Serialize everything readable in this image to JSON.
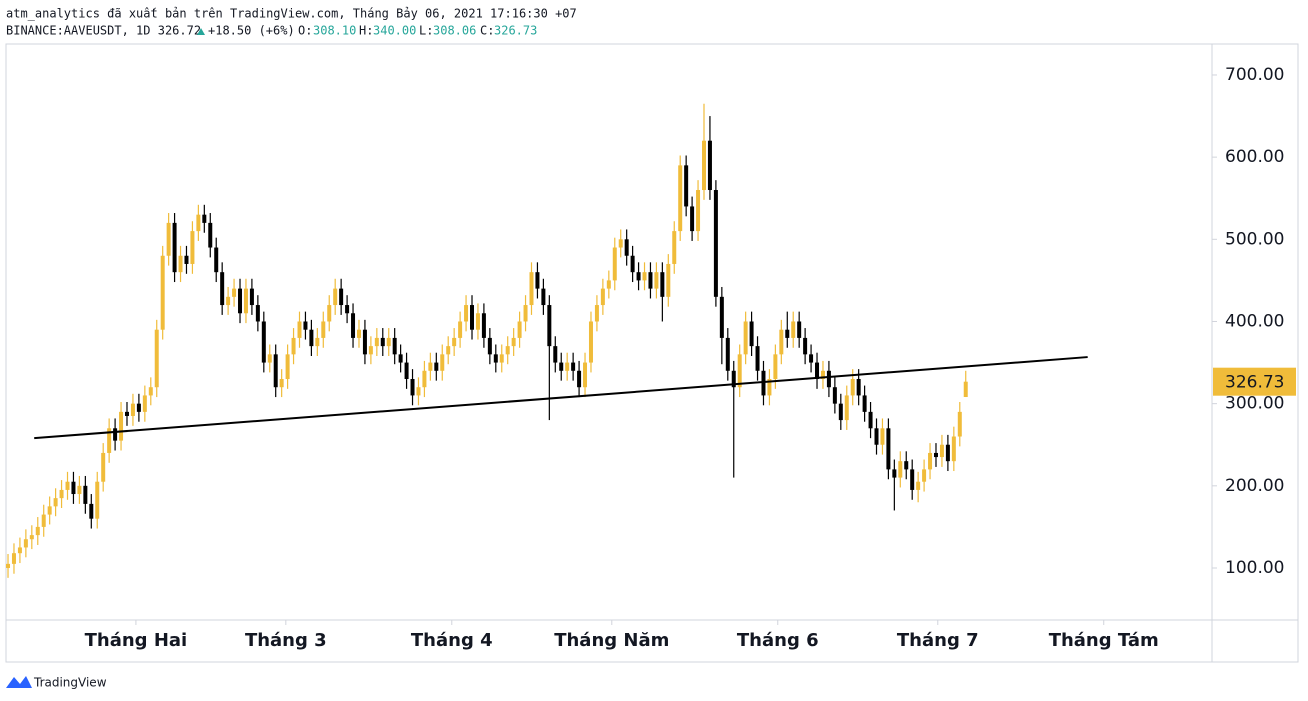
{
  "chart_data": {
    "type": "candlestick",
    "header": {
      "line1": "atm_analytics đã xuất bản trên TradingView.com, Tháng Bảy 06, 2021 17:16:30 +07",
      "symbol": "BINANCE:AAVEUSDT, 1D 326.72",
      "change": "+18.50 (+6%)",
      "o_label": "O:",
      "o_value": "308.10",
      "h_label": "H:",
      "h_value": "340.00",
      "l_label": "L:",
      "l_value": "308.06",
      "c_label": "C:",
      "c_value": "326.73"
    },
    "footer": "TradingView",
    "up_color": "#f0bc3a",
    "down_color": "#000000",
    "open": [
      100,
      105,
      118,
      125,
      135,
      140,
      150,
      165,
      175,
      185,
      195,
      205,
      190,
      200,
      178,
      160,
      205,
      240,
      270,
      255,
      290,
      285,
      300,
      290,
      310,
      320,
      390,
      480,
      520,
      460,
      480,
      470,
      510,
      530,
      520,
      490,
      460,
      420,
      430,
      440,
      410,
      440,
      420,
      400,
      350,
      360,
      320,
      330,
      360,
      380,
      400,
      390,
      370,
      380,
      400,
      420,
      440,
      420,
      410,
      380,
      390,
      360,
      370,
      380,
      370,
      380,
      360,
      350,
      330,
      310,
      320,
      340,
      350,
      340,
      360,
      370,
      380,
      400,
      420,
      390,
      410,
      380,
      360,
      350,
      360,
      370,
      380,
      400,
      420,
      460,
      440,
      420,
      370,
      350,
      340,
      350,
      340,
      320,
      350,
      400,
      420,
      440,
      450,
      490,
      500,
      480,
      460,
      450,
      460,
      440,
      460,
      430,
      470,
      510,
      590,
      540,
      510,
      560,
      620,
      560,
      430,
      380,
      340,
      320,
      360,
      400,
      370,
      340,
      310,
      330,
      360,
      390,
      380,
      400,
      380,
      360,
      350,
      330,
      340,
      320,
      300,
      280,
      310,
      330,
      310,
      290,
      270,
      250,
      270,
      220,
      210,
      230,
      220,
      195,
      205,
      220,
      240,
      235,
      250,
      230,
      260,
      308.1
    ],
    "high": [
      117,
      130,
      137,
      147,
      152,
      162,
      177,
      187,
      197,
      207,
      217,
      217,
      212,
      212,
      190,
      217,
      252,
      282,
      282,
      302,
      302,
      312,
      312,
      322,
      332,
      402,
      492,
      532,
      532,
      492,
      492,
      522,
      542,
      542,
      532,
      502,
      472,
      442,
      452,
      452,
      452,
      452,
      432,
      412,
      372,
      372,
      342,
      372,
      392,
      412,
      412,
      402,
      392,
      412,
      432,
      452,
      452,
      432,
      422,
      402,
      402,
      382,
      392,
      392,
      392,
      392,
      372,
      362,
      342,
      332,
      352,
      362,
      362,
      372,
      382,
      392,
      412,
      432,
      432,
      422,
      422,
      392,
      372,
      372,
      382,
      392,
      412,
      432,
      472,
      472,
      452,
      432,
      382,
      362,
      362,
      362,
      352,
      362,
      412,
      432,
      452,
      462,
      502,
      512,
      512,
      492,
      472,
      472,
      472,
      472,
      472,
      482,
      522,
      602,
      602,
      552,
      572,
      665,
      650,
      572,
      442,
      392,
      352,
      372,
      412,
      412,
      382,
      352,
      342,
      372,
      402,
      412,
      412,
      412,
      392,
      372,
      362,
      352,
      352,
      332,
      312,
      322,
      342,
      342,
      322,
      302,
      282,
      282,
      282,
      232,
      242,
      242,
      232,
      217,
      232,
      252,
      252,
      262,
      262,
      272,
      302,
      340
    ],
    "low": [
      88,
      93,
      106,
      113,
      123,
      128,
      138,
      153,
      163,
      173,
      183,
      178,
      178,
      166,
      148,
      148,
      193,
      228,
      243,
      243,
      273,
      273,
      278,
      278,
      298,
      308,
      378,
      468,
      448,
      448,
      458,
      458,
      498,
      508,
      478,
      448,
      408,
      408,
      418,
      398,
      398,
      408,
      388,
      338,
      338,
      308,
      308,
      318,
      348,
      368,
      378,
      358,
      358,
      368,
      388,
      408,
      408,
      398,
      368,
      368,
      348,
      348,
      358,
      358,
      358,
      348,
      338,
      318,
      298,
      298,
      308,
      328,
      328,
      328,
      348,
      358,
      368,
      388,
      378,
      378,
      368,
      348,
      338,
      338,
      348,
      358,
      368,
      388,
      408,
      428,
      408,
      280,
      338,
      328,
      328,
      328,
      308,
      308,
      338,
      388,
      408,
      428,
      438,
      478,
      468,
      448,
      438,
      438,
      428,
      428,
      400,
      418,
      458,
      498,
      528,
      498,
      498,
      548,
      548,
      418,
      348,
      328,
      210,
      308,
      348,
      358,
      328,
      298,
      298,
      318,
      348,
      368,
      368,
      368,
      348,
      338,
      318,
      318,
      308,
      288,
      268,
      268,
      298,
      298,
      278,
      258,
      238,
      238,
      208,
      170,
      198,
      208,
      183,
      180,
      193,
      208,
      223,
      223,
      218,
      218,
      248,
      308.06
    ],
    "close": [
      105,
      118,
      125,
      135,
      140,
      150,
      165,
      175,
      185,
      195,
      205,
      190,
      200,
      178,
      160,
      205,
      240,
      270,
      255,
      290,
      285,
      300,
      290,
      310,
      320,
      390,
      480,
      520,
      460,
      480,
      470,
      510,
      530,
      520,
      490,
      460,
      420,
      430,
      440,
      410,
      440,
      420,
      400,
      350,
      360,
      320,
      330,
      360,
      380,
      400,
      390,
      370,
      380,
      400,
      420,
      440,
      420,
      410,
      380,
      390,
      360,
      370,
      380,
      370,
      380,
      360,
      350,
      330,
      310,
      320,
      340,
      350,
      340,
      360,
      370,
      380,
      400,
      420,
      390,
      410,
      380,
      360,
      350,
      360,
      370,
      380,
      400,
      420,
      460,
      440,
      420,
      370,
      350,
      340,
      350,
      340,
      320,
      350,
      400,
      420,
      440,
      450,
      490,
      500,
      480,
      460,
      450,
      460,
      440,
      460,
      430,
      470,
      510,
      590,
      540,
      510,
      560,
      620,
      560,
      430,
      380,
      340,
      320,
      360,
      400,
      370,
      340,
      310,
      330,
      360,
      390,
      380,
      400,
      380,
      360,
      350,
      330,
      340,
      320,
      300,
      280,
      310,
      330,
      310,
      290,
      270,
      250,
      270,
      220,
      210,
      230,
      220,
      195,
      205,
      220,
      240,
      235,
      250,
      230,
      260,
      290,
      326.73
    ],
    "xlim": [
      -0.34,
      202.4
    ],
    "xticks": [
      {
        "value": 21.5,
        "label": "Tháng Hai"
      },
      {
        "value": 46.7,
        "label": "Tháng 3"
      },
      {
        "value": 74.6,
        "label": "Tháng 4"
      },
      {
        "value": 101.5,
        "label": "Tháng Năm"
      },
      {
        "value": 129.4,
        "label": "Tháng 6"
      },
      {
        "value": 156.3,
        "label": "Tháng 7"
      },
      {
        "value": 184.2,
        "label": "Tháng Tám"
      }
    ],
    "ylim": [
      36.7,
      737.7
    ],
    "yticks": [
      {
        "value": 100,
        "label": "100.00"
      },
      {
        "value": 200,
        "label": "200.00"
      },
      {
        "value": 300,
        "label": "300.00"
      },
      {
        "value": 400,
        "label": "400.00"
      },
      {
        "value": 500,
        "label": "500.00"
      },
      {
        "value": 600,
        "label": "600.00"
      },
      {
        "value": 700,
        "label": "700.00"
      }
    ],
    "trendline": {
      "x": [
        4.4,
        181.5
      ],
      "y": [
        258,
        356.7
      ],
      "color": "#000000"
    }
  }
}
